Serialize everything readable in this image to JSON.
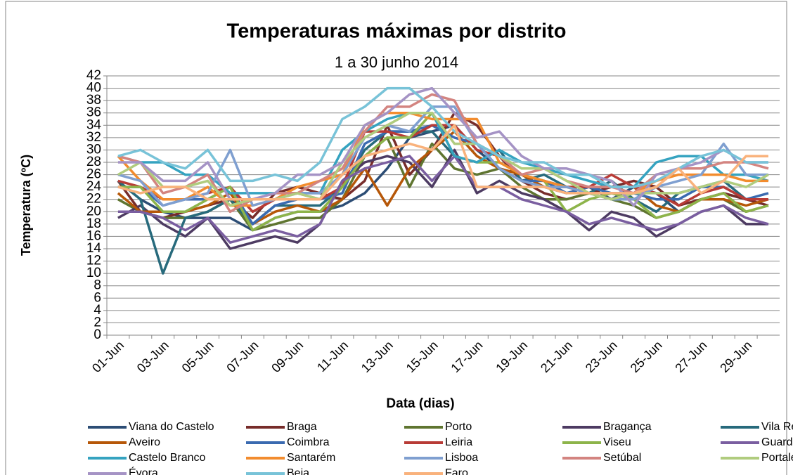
{
  "chart_data": {
    "type": "line",
    "title": "Temperaturas máximas por distrito",
    "subtitle": "1 a 30 junho 2014",
    "x_label": "Data (dias)",
    "y_label": "Temperatura (ºC)",
    "categories": [
      "01-Jun",
      null,
      "03-Jun",
      null,
      "05-Jun",
      null,
      "07-Jun",
      null,
      "09-Jun",
      null,
      "11-Jun",
      null,
      "13-Jun",
      null,
      "15-Jun",
      null,
      "17-Jun",
      null,
      "19-Jun",
      null,
      "21-Jun",
      null,
      "23-Jun",
      null,
      "25-Jun",
      null,
      "27-Jun",
      null,
      "29-Jun",
      null
    ],
    "ylim": [
      0,
      42
    ],
    "yticks": [
      0,
      2,
      4,
      6,
      8,
      10,
      12,
      14,
      16,
      18,
      20,
      22,
      24,
      26,
      28,
      30,
      32,
      34,
      36,
      38,
      40,
      42
    ],
    "grid": true,
    "legend": "bottom",
    "series": [
      {
        "name": "Viana do Castelo",
        "color": "#2c4d75",
        "values": [
          25,
          22,
          20,
          19,
          19,
          19,
          17,
          19,
          20,
          20,
          21,
          23,
          27,
          32,
          33,
          34,
          30,
          27,
          26,
          24,
          23,
          24,
          22,
          24,
          23,
          20,
          22,
          23,
          22,
          22
        ]
      },
      {
        "name": "Braga",
        "color": "#772c2a",
        "values": [
          25,
          20,
          19,
          20,
          21,
          22,
          19,
          23,
          24,
          23,
          22,
          25,
          34,
          26,
          30,
          36,
          34,
          29,
          25,
          23,
          22,
          23,
          24,
          25,
          24,
          21,
          22,
          23,
          22,
          21
        ]
      },
      {
        "name": "Porto",
        "color": "#5f7530",
        "values": [
          22,
          20,
          19,
          19,
          20,
          22,
          17,
          18,
          19,
          19,
          22,
          29,
          32,
          24,
          31,
          27,
          26,
          27,
          24,
          22,
          22,
          23,
          22,
          21,
          19,
          20,
          22,
          22,
          20,
          21
        ]
      },
      {
        "name": "Bragança",
        "color": "#4d3b62",
        "values": [
          19,
          21,
          18,
          16,
          19,
          14,
          15,
          16,
          15,
          18,
          25,
          28,
          29,
          28,
          24,
          30,
          23,
          25,
          23,
          22,
          20,
          17,
          20,
          19,
          16,
          18,
          20,
          21,
          18,
          18
        ]
      },
      {
        "name": "Vila Real",
        "color": "#276a7c",
        "values": [
          25,
          22,
          10,
          19,
          20,
          22,
          18,
          21,
          21,
          21,
          24,
          30,
          33,
          33,
          33,
          29,
          28,
          30,
          25,
          26,
          24,
          23,
          25,
          22,
          20,
          23,
          24,
          25,
          22,
          22
        ]
      },
      {
        "name": "Aveiro",
        "color": "#b65708",
        "values": [
          23,
          20,
          20,
          20,
          21,
          23,
          18,
          20,
          21,
          20,
          22,
          27,
          21,
          27,
          30,
          33,
          29,
          27,
          26,
          24,
          24,
          24,
          24,
          24,
          21,
          20,
          22,
          22,
          21,
          22
        ]
      },
      {
        "name": "Coimbra",
        "color": "#3a6ab0",
        "values": [
          24,
          24,
          21,
          22,
          22,
          24,
          18,
          21,
          22,
          22,
          23,
          31,
          33,
          33,
          34,
          32,
          31,
          27,
          25,
          25,
          23,
          24,
          23,
          23,
          22,
          22,
          24,
          24,
          22,
          23
        ]
      },
      {
        "name": "Leiria",
        "color": "#b83b36",
        "values": [
          25,
          24,
          22,
          22,
          23,
          24,
          20,
          22,
          23,
          22,
          24,
          33,
          33,
          32,
          34,
          34,
          30,
          29,
          26,
          25,
          24,
          24,
          26,
          24,
          23,
          21,
          23,
          24,
          22,
          22
        ]
      },
      {
        "name": "Viseu",
        "color": "#8db44a",
        "values": [
          24,
          24,
          20,
          20,
          22,
          24,
          17,
          19,
          20,
          20,
          24,
          29,
          32,
          32,
          36,
          29,
          28,
          28,
          26,
          25,
          20,
          22,
          23,
          22,
          19,
          20,
          22,
          23,
          20,
          21
        ]
      },
      {
        "name": "Guarda",
        "color": "#7a5ea0",
        "values": [
          20,
          20,
          19,
          17,
          19,
          15,
          16,
          17,
          16,
          18,
          25,
          27,
          28,
          29,
          25,
          29,
          24,
          24,
          22,
          21,
          20,
          18,
          19,
          18,
          17,
          18,
          20,
          21,
          19,
          18
        ]
      },
      {
        "name": "Castelo Branco",
        "color": "#35a3c0",
        "values": [
          29,
          28,
          28,
          26,
          26,
          23,
          23,
          23,
          23,
          23,
          30,
          33,
          35,
          36,
          36,
          29,
          28,
          30,
          28,
          27,
          26,
          25,
          24,
          24,
          28,
          29,
          29,
          26,
          26,
          25
        ]
      },
      {
        "name": "Santarém",
        "color": "#f28c2e",
        "values": [
          29,
          25,
          22,
          22,
          24,
          21,
          21,
          22,
          24,
          25,
          26,
          34,
          36,
          36,
          35,
          35,
          35,
          28,
          26,
          25,
          24,
          23,
          22,
          23,
          25,
          26,
          26,
          26,
          25,
          25
        ]
      },
      {
        "name": "Lisboa",
        "color": "#7f9fd0",
        "values": [
          26,
          25,
          21,
          22,
          23,
          30,
          21,
          22,
          23,
          23,
          26,
          32,
          34,
          33,
          37,
          37,
          31,
          27,
          25,
          24,
          24,
          23,
          22,
          22,
          24,
          25,
          26,
          31,
          26,
          26
        ]
      },
      {
        "name": "Setúbal",
        "color": "#d38480",
        "values": [
          29,
          28,
          23,
          24,
          26,
          20,
          22,
          23,
          23,
          25,
          27,
          33,
          37,
          37,
          39,
          38,
          31,
          29,
          26,
          27,
          25,
          24,
          24,
          23,
          26,
          27,
          27,
          28,
          28,
          27
        ]
      },
      {
        "name": "Portalegre",
        "color": "#b0cc7e",
        "values": [
          26,
          28,
          24,
          24,
          25,
          21,
          22,
          22,
          23,
          22,
          28,
          32,
          34,
          36,
          36,
          31,
          31,
          29,
          27,
          27,
          25,
          23,
          22,
          23,
          23,
          23,
          24,
          25,
          24,
          26
        ]
      },
      {
        "name": "Évora",
        "color": "#a593c5",
        "values": [
          28,
          28,
          25,
          25,
          28,
          22,
          22,
          23,
          26,
          26,
          28,
          34,
          36,
          39,
          40,
          36,
          32,
          33,
          29,
          27,
          27,
          26,
          25,
          21,
          26,
          27,
          28,
          30,
          28,
          28
        ]
      },
      {
        "name": "Beja",
        "color": "#78c3d8",
        "values": [
          29,
          30,
          28,
          27,
          30,
          25,
          25,
          26,
          25,
          28,
          35,
          37,
          40,
          40,
          37,
          33,
          31,
          29,
          28,
          28,
          26,
          26,
          24,
          24,
          25,
          27,
          29,
          30,
          28,
          28
        ]
      },
      {
        "name": "Faro",
        "color": "#f9b27c",
        "values": [
          24,
          23,
          24,
          24,
          22,
          22,
          22,
          22,
          22,
          22,
          26,
          29,
          30,
          31,
          30,
          34,
          24,
          24,
          24,
          24,
          23,
          23,
          23,
          23,
          24,
          27,
          23,
          25,
          29,
          29
        ]
      }
    ]
  }
}
